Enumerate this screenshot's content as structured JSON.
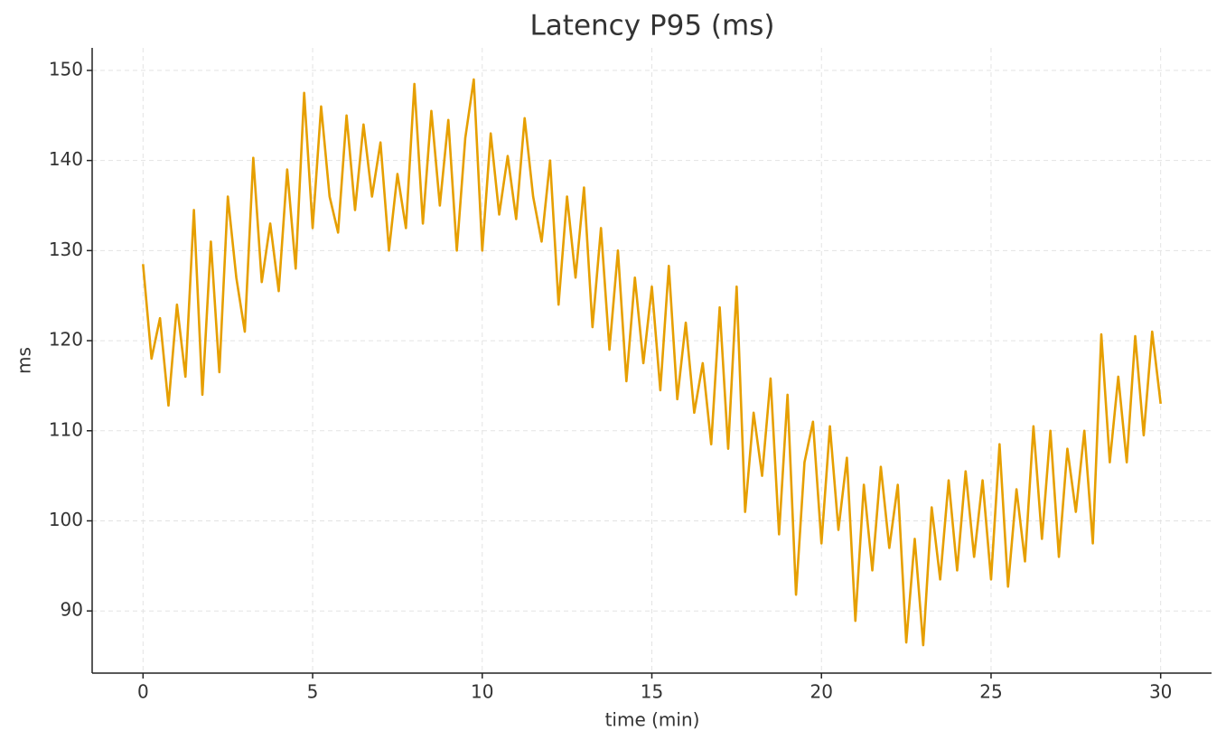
{
  "chart_data": {
    "type": "line",
    "title": "Latency P95 (ms)",
    "x_label": "time (min)",
    "y_label": "ms",
    "x": [
      0,
      0.25,
      0.5,
      0.75,
      1,
      1.25,
      1.5,
      1.75,
      2,
      2.25,
      2.5,
      2.75,
      3,
      3.25,
      3.5,
      3.75,
      4,
      4.25,
      4.5,
      4.75,
      5,
      5.25,
      5.5,
      5.75,
      6,
      6.25,
      6.5,
      6.75,
      7,
      7.25,
      7.5,
      7.75,
      8,
      8.25,
      8.5,
      8.75,
      9,
      9.25,
      9.5,
      9.75,
      10,
      10.25,
      10.5,
      10.75,
      11,
      11.25,
      11.5,
      11.75,
      12,
      12.25,
      12.5,
      12.75,
      13,
      13.25,
      13.5,
      13.75,
      14,
      14.25,
      14.5,
      14.75,
      15,
      15.25,
      15.5,
      15.75,
      16,
      16.25,
      16.5,
      16.75,
      17,
      17.25,
      17.5,
      17.75,
      18,
      18.25,
      18.5,
      18.75,
      19,
      19.25,
      19.5,
      19.75,
      20,
      20.25,
      20.5,
      20.75,
      21,
      21.25,
      21.5,
      21.75,
      22,
      22.25,
      22.5,
      22.75,
      23,
      23.25,
      23.5,
      23.75,
      24,
      24.25,
      24.5,
      24.75,
      25,
      25.25,
      25.5,
      25.75,
      26,
      26.25,
      26.5,
      26.75,
      27,
      27.25,
      27.5,
      27.75,
      28,
      28.25,
      28.5,
      28.75,
      29,
      29.25,
      29.5,
      29.75,
      30
    ],
    "series": [
      {
        "name": "Latency P95",
        "color": "#e69f00",
        "values": [
          128.5,
          118,
          122.5,
          112.8,
          124,
          116,
          134.5,
          114,
          131,
          116.5,
          136,
          127,
          121,
          140.3,
          126.5,
          133,
          125.5,
          139,
          128,
          147.5,
          132.5,
          146,
          136,
          132,
          145,
          134.5,
          144,
          136,
          142,
          130,
          138.5,
          132.5,
          148.5,
          133,
          145.5,
          135,
          144.5,
          130,
          142.5,
          149,
          130,
          143,
          134,
          140.5,
          133.5,
          144.7,
          136,
          131,
          140,
          124,
          136,
          127,
          137,
          121.5,
          132.5,
          119,
          130,
          115.5,
          127,
          117.5,
          126,
          114.5,
          128.3,
          113.5,
          122,
          112,
          117.5,
          108.5,
          123.7,
          108,
          126,
          101,
          112,
          105,
          115.8,
          98.5,
          114,
          91.8,
          106.5,
          111,
          97.5,
          110.5,
          99,
          107,
          88.9,
          104,
          94.5,
          106,
          97,
          104,
          86.5,
          98,
          86.2,
          101.5,
          93.5,
          104.5,
          94.5,
          105.5,
          96,
          104.5,
          93.5,
          108.5,
          92.7,
          103.5,
          95.5,
          110.5,
          98,
          110,
          96,
          108,
          101,
          110,
          97.5,
          120.7,
          106.5,
          116,
          106.5,
          120.5,
          109.5,
          121,
          113
        ]
      }
    ],
    "xlim": [
      -1.5,
      31.5
    ],
    "ylim": [
      83.1,
      152.5
    ],
    "xticks": [
      0,
      5,
      10,
      15,
      20,
      25,
      30
    ],
    "yticks": [
      90,
      100,
      110,
      120,
      130,
      140,
      150
    ],
    "grid": true
  }
}
